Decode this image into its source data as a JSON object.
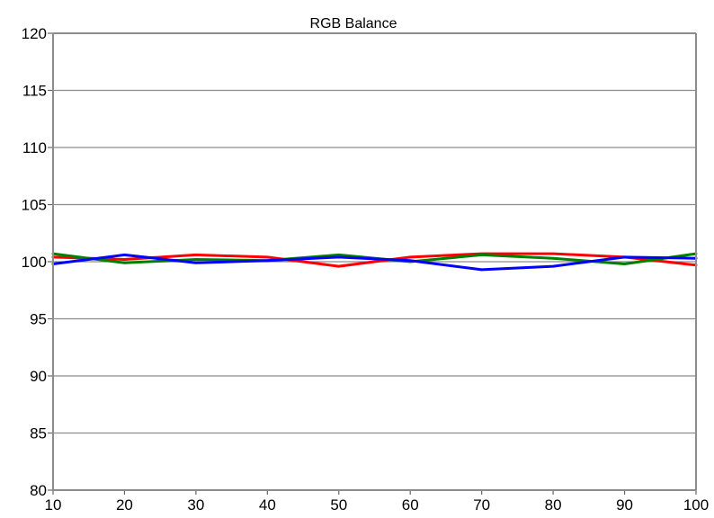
{
  "chart_data": {
    "type": "line",
    "title": "RGB Balance",
    "xlabel": "",
    "ylabel": "",
    "x": [
      10,
      20,
      30,
      40,
      50,
      60,
      70,
      80,
      90,
      100
    ],
    "xlim": [
      10,
      100
    ],
    "ylim": [
      80,
      120
    ],
    "xticks": [
      "10",
      "20",
      "30",
      "40",
      "50",
      "60",
      "70",
      "80",
      "90",
      "100"
    ],
    "yticks": [
      "80",
      "85",
      "90",
      "95",
      "100",
      "105",
      "110",
      "115",
      "120"
    ],
    "grid": true,
    "series": [
      {
        "color": "#ff0000",
        "values": [
          100.4,
          100.2,
          100.6,
          100.4,
          99.6,
          100.4,
          100.7,
          100.7,
          100.4,
          99.7
        ]
      },
      {
        "color": "#008000",
        "values": [
          100.7,
          99.9,
          100.2,
          100.1,
          100.6,
          100.0,
          100.6,
          100.3,
          99.8,
          100.7
        ]
      },
      {
        "color": "#0000ff",
        "values": [
          99.8,
          100.6,
          99.9,
          100.1,
          100.4,
          100.1,
          99.3,
          99.6,
          100.4,
          100.3
        ]
      }
    ]
  }
}
